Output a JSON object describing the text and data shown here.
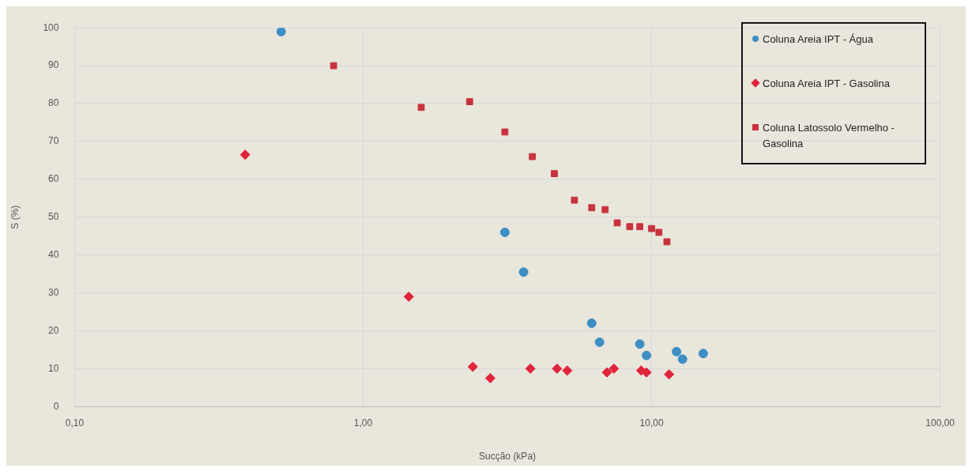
{
  "chart_data": {
    "type": "scatter",
    "xlabel": "Sucção (kPa)",
    "ylabel": "S (%)",
    "log": "x",
    "xlim": [
      0.1,
      100
    ],
    "xticks": [
      {
        "value": 0.1,
        "label": "0,10"
      },
      {
        "value": 1,
        "label": "1,00"
      },
      {
        "value": 10,
        "label": "10,00"
      },
      {
        "value": 100,
        "label": "100,00"
      }
    ],
    "ylim": [
      0,
      100
    ],
    "yticks": [
      0,
      10,
      20,
      30,
      40,
      50,
      60,
      70,
      80,
      90,
      100
    ],
    "grid": true,
    "legend": "top right",
    "series": [
      {
        "name": "Coluna Areia IPT - Água",
        "color": "#3d8fc4",
        "marker": "circle",
        "x": [
          0.52,
          3.1,
          3.6,
          6.2,
          6.6,
          9.1,
          9.6,
          12.2,
          12.8,
          15.1
        ],
        "values": [
          99,
          46,
          35.5,
          22,
          17,
          16.5,
          13.5,
          14.5,
          12.5,
          14
        ]
      },
      {
        "name": "Coluna Areia IPT - Gasolina",
        "color": "#e0243c",
        "marker": "diamond",
        "x": [
          0.39,
          1.44,
          2.4,
          2.76,
          3.8,
          4.7,
          5.1,
          7.0,
          7.4,
          9.2,
          9.6,
          11.5
        ],
        "values": [
          66.5,
          29,
          10.5,
          7.5,
          10,
          10,
          9.5,
          9,
          10,
          9.5,
          9,
          8.5
        ]
      },
      {
        "name": "Coluna Latossolo Vermelho - Gasolina",
        "color": "#c8333e",
        "marker": "square",
        "x": [
          0.79,
          1.59,
          2.34,
          3.1,
          3.86,
          4.6,
          5.4,
          6.2,
          6.9,
          7.6,
          8.4,
          9.1,
          10.0,
          10.6,
          11.3
        ],
        "values": [
          90,
          79,
          80.5,
          72.5,
          66,
          61.5,
          54.5,
          52.5,
          52,
          48.5,
          47.5,
          47.5,
          47,
          46,
          43.5
        ]
      }
    ]
  }
}
